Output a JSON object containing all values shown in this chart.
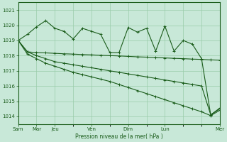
{
  "background_color": "#c8e8d8",
  "plot_bg_color": "#c8e8d8",
  "grid_color": "#99ccaa",
  "line_color": "#1a5c1a",
  "xlabel": "Pression niveau de la mer( hPa )",
  "ylim": [
    1013.5,
    1021.5
  ],
  "yticks": [
    1014,
    1015,
    1016,
    1017,
    1018,
    1019,
    1020,
    1021
  ],
  "x_major_ticks": [
    0,
    2,
    4,
    8,
    12,
    16,
    22
  ],
  "x_major_labels": [
    "Sam",
    "Mar",
    "Jeu",
    "Ven",
    "Dim",
    "Lun",
    "Mer"
  ],
  "series": [
    [
      1019.0,
      1019.4,
      1019.9,
      1020.3,
      1019.8,
      1019.6,
      1019.1,
      1019.8,
      1019.6,
      1019.4,
      1018.2,
      1018.2,
      1019.85,
      1019.55,
      1019.8,
      1018.3,
      1019.95,
      1018.3,
      1019.0,
      1018.75,
      1017.8,
      1014.1,
      1014.5
    ],
    [
      1019.0,
      1018.25,
      1018.2,
      1018.18,
      1018.15,
      1018.12,
      1018.1,
      1018.07,
      1018.05,
      1018.02,
      1018.0,
      1017.98,
      1017.95,
      1017.92,
      1017.9,
      1017.87,
      1017.85,
      1017.82,
      1017.8,
      1017.77,
      1017.75,
      1017.72,
      1017.7
    ],
    [
      1019.0,
      1018.25,
      1018.0,
      1017.8,
      1017.6,
      1017.5,
      1017.4,
      1017.3,
      1017.2,
      1017.1,
      1017.0,
      1016.9,
      1016.8,
      1016.7,
      1016.6,
      1016.5,
      1016.4,
      1016.3,
      1016.2,
      1016.1,
      1016.0,
      1014.1,
      1014.55
    ],
    [
      1019.0,
      1018.1,
      1017.8,
      1017.5,
      1017.3,
      1017.1,
      1016.9,
      1016.75,
      1016.6,
      1016.45,
      1016.3,
      1016.1,
      1015.9,
      1015.7,
      1015.5,
      1015.3,
      1015.1,
      1014.9,
      1014.7,
      1014.5,
      1014.3,
      1014.05,
      1014.4
    ]
  ],
  "n_points": 23,
  "x_range": [
    0,
    22
  ]
}
